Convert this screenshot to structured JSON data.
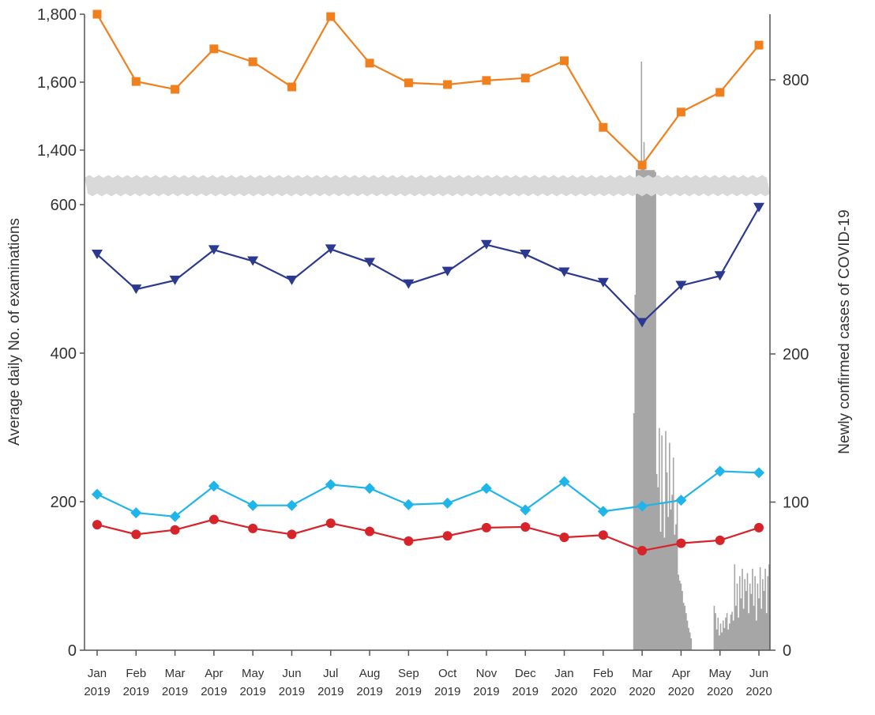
{
  "chart_data": {
    "type": "line",
    "title": "",
    "xlabel": "",
    "ylabel": "Average daily No. of examinations",
    "y2label": "Newly confirmed cases of COVID-19",
    "categories": [
      [
        "Jan",
        "2019"
      ],
      [
        "Feb",
        "2019"
      ],
      [
        "Mar",
        "2019"
      ],
      [
        "Apr",
        "2019"
      ],
      [
        "May",
        "2019"
      ],
      [
        "Jun",
        "2019"
      ],
      [
        "Jul",
        "2019"
      ],
      [
        "Aug",
        "2019"
      ],
      [
        "Sep",
        "2019"
      ],
      [
        "Oct",
        "2019"
      ],
      [
        "Nov",
        "2019"
      ],
      [
        "Dec",
        "2019"
      ],
      [
        "Jan",
        "2020"
      ],
      [
        "Feb",
        "2020"
      ],
      [
        "Mar",
        "2020"
      ],
      [
        "Apr",
        "2020"
      ],
      [
        "May",
        "2020"
      ],
      [
        "Jun",
        "2020"
      ]
    ],
    "y_ticks_upper": [
      "1,800",
      "1,600",
      "1,400"
    ],
    "y_ticks_upper_values": [
      1800,
      1600,
      1400
    ],
    "y_ticks_lower": [
      "600",
      "400",
      "200",
      "0"
    ],
    "y_ticks_lower_values": [
      600,
      400,
      200,
      0
    ],
    "y2_ticks": [
      "800",
      "200",
      "100",
      "0"
    ],
    "y2_ticks_values": [
      800,
      200,
      100,
      0
    ],
    "axis_break": "between 600 and 1,400 (left axis)",
    "grid": false,
    "series": [
      {
        "name": "orange-squares",
        "color": "#f07f1d",
        "marker": "square",
        "values": [
          1800,
          1602,
          1579,
          1698,
          1660,
          1586,
          1793,
          1656,
          1598,
          1593,
          1605,
          1612,
          1663,
          1467,
          1356,
          1512,
          1570,
          1709
        ]
      },
      {
        "name": "navy-triangles",
        "color": "#2b3990",
        "marker": "triangle-down",
        "values": [
          533,
          486,
          498,
          539,
          524,
          498,
          540,
          522,
          493,
          510,
          546,
          533,
          509,
          495,
          441,
          491,
          504,
          596
        ]
      },
      {
        "name": "cyan-diamonds",
        "color": "#1fb4ea",
        "marker": "diamond",
        "values": [
          210,
          185,
          180,
          221,
          195,
          195,
          223,
          218,
          196,
          198,
          218,
          189,
          227,
          187,
          194,
          202,
          241,
          239
        ]
      },
      {
        "name": "red-circles",
        "color": "#d7232a",
        "marker": "circle",
        "values": [
          169,
          156,
          162,
          176,
          164,
          156,
          171,
          160,
          147,
          154,
          165,
          166,
          152,
          155,
          134,
          144,
          148,
          165
        ]
      }
    ],
    "covid_daily": {
      "axis": "right",
      "color": "#a6a6a6",
      "start_date": "2020-02-23",
      "values": [
        160,
        240,
        330,
        330,
        330,
        330,
        909,
        340,
        480,
        330,
        330,
        330,
        330,
        330,
        330,
        330,
        330,
        320,
        119,
        110,
        150,
        80,
        145,
        100,
        76,
        148,
        120,
        90,
        140,
        95,
        105,
        130,
        78,
        85,
        100,
        51,
        47,
        45,
        40,
        32,
        30,
        25,
        20,
        15,
        12,
        8,
        0,
        0,
        0,
        0,
        0,
        0,
        0,
        0,
        0,
        0,
        0,
        0,
        0,
        0,
        0,
        0,
        0,
        30,
        25,
        14,
        22,
        10,
        18,
        12,
        20,
        15,
        22,
        25,
        14,
        18,
        24,
        26,
        20,
        58,
        30,
        45,
        22,
        50,
        35,
        55,
        28,
        48,
        40,
        52,
        25,
        45,
        38,
        55,
        30,
        50,
        20,
        45,
        35,
        56,
        28,
        48,
        40,
        55,
        25,
        50,
        58
      ]
    }
  }
}
